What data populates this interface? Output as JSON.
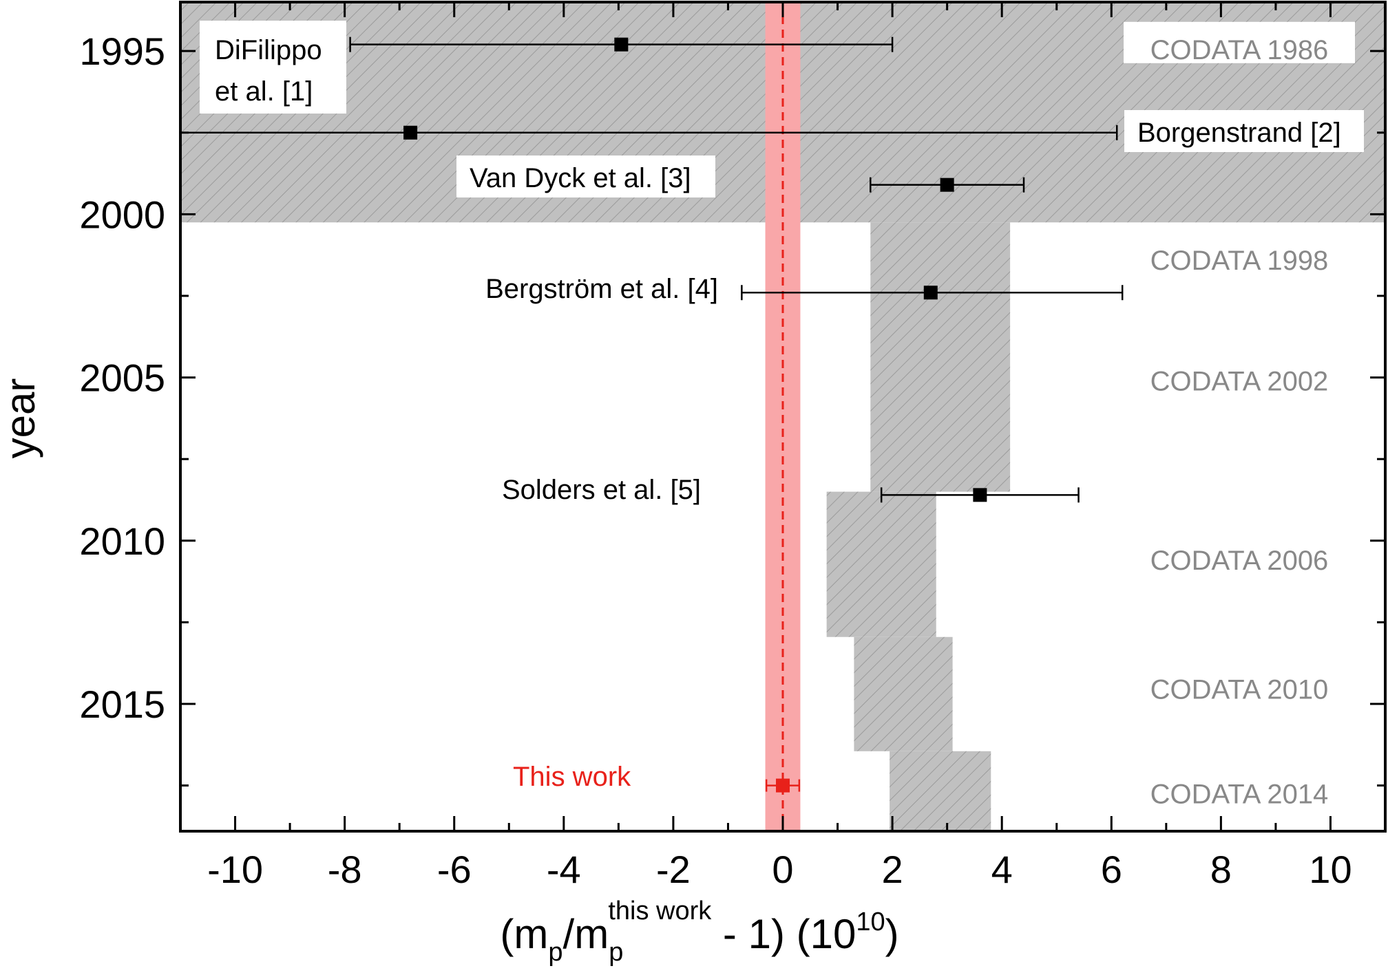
{
  "chart_data": {
    "type": "scatter",
    "title": "",
    "xlabel": {
      "prefix": "(m",
      "sub1": "p",
      "mid": "/m",
      "sub2": "p",
      "sup": "this work",
      "suffix": " - 1) (10",
      "exp": "10",
      "end": ")"
    },
    "ylabel": "year",
    "xlim": [
      -11,
      11
    ],
    "ylim": [
      1993.5,
      2018.9
    ],
    "y_inverted": true,
    "grid": false,
    "x_ticks": [
      -10,
      -8,
      -6,
      -4,
      -2,
      0,
      2,
      4,
      6,
      8,
      10
    ],
    "x_tick_labels": [
      "-10",
      "-8",
      "-6",
      "-4",
      "-2",
      "0",
      "2",
      "4",
      "6",
      "8",
      "10"
    ],
    "y_ticks": [
      1995,
      2000,
      2005,
      2010,
      2015
    ],
    "y_tick_labels": [
      "1995",
      "2000",
      "2005",
      "2010",
      "2015"
    ],
    "measurements": [
      {
        "label": "DiFilippo\net al. [1]",
        "x": -2.95,
        "y": 1994.8,
        "xerr_low": -7.9,
        "xerr_high": 2.0,
        "boxed": true
      },
      {
        "label": "Borgenstrand [2]",
        "x": -6.8,
        "y": 1997.5,
        "xerr_low": -11.0,
        "xerr_high": 6.1,
        "boxed": true
      },
      {
        "label": "Van Dyck et al. [3]",
        "x": 3.0,
        "y": 1999.1,
        "xerr_low": 1.6,
        "xerr_high": 4.4,
        "boxed": true
      },
      {
        "label": "Bergström et al. [4]",
        "x": 2.7,
        "y": 2002.4,
        "xerr_low": -0.75,
        "xerr_high": 6.2,
        "boxed": false
      },
      {
        "label": "Solders et al. [5]",
        "x": 3.6,
        "y": 2008.6,
        "xerr_low": 1.8,
        "xerr_high": 5.4,
        "boxed": false
      }
    ],
    "this_work": {
      "label": "This work",
      "x": 0.0,
      "y": 2017.5,
      "xerr": 0.3,
      "band": 0.32,
      "color": "#e8211a",
      "band_color": "#f9a7a9"
    },
    "codata_bands": [
      {
        "label": "CODATA 1986",
        "y_start": 1993.5,
        "y_end": 2000.25,
        "x_low": -11.0,
        "x_high": 11.0
      },
      {
        "label": "CODATA 1998",
        "y_start": 2000.25,
        "y_end": 2008.5,
        "x_low": 1.6,
        "x_high": 4.15
      },
      {
        "label": "CODATA 2002",
        "y_start": null,
        "y_end": null,
        "x_low": null,
        "x_high": null
      },
      {
        "label": "CODATA 2006",
        "y_start": 2008.5,
        "y_end": 2012.95,
        "x_low": 0.8,
        "x_high": 2.8
      },
      {
        "label": "CODATA 2010",
        "y_start": 2012.95,
        "y_end": 2016.45,
        "x_low": 1.3,
        "x_high": 3.1
      },
      {
        "label": "CODATA 2014",
        "y_start": 2016.45,
        "y_end": 2018.9,
        "x_low": 1.95,
        "x_high": 3.8
      }
    ],
    "codata_label_y": [
      1994.95,
      2001.4,
      2005.1,
      2010.6,
      2014.55,
      2017.75
    ],
    "colors": {
      "band_fill": "#c0c0c0",
      "hatch": "#9b9b9b",
      "codata_text": "#888888",
      "marker": "#000000"
    }
  }
}
